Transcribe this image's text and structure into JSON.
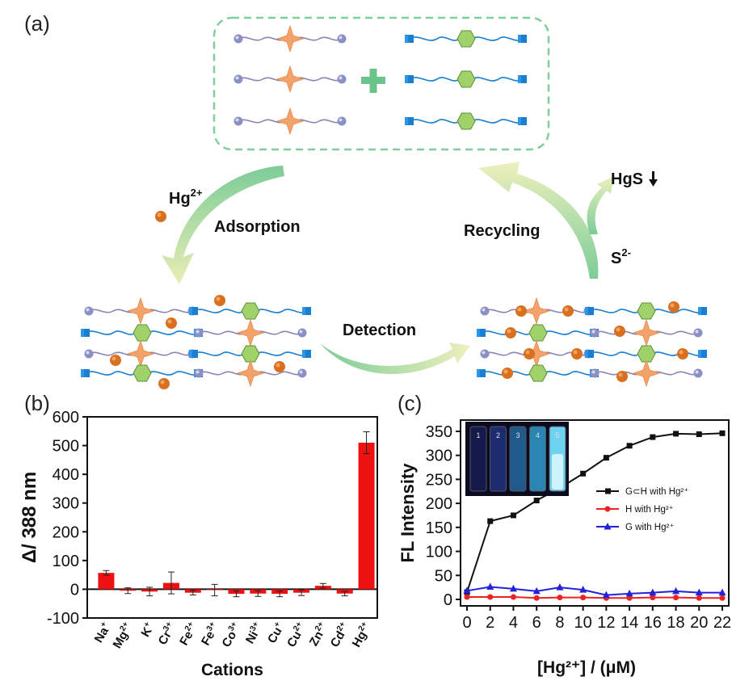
{
  "panels": {
    "a_label": "(a)",
    "b_label": "(b)",
    "c_label": "(c)"
  },
  "scheme": {
    "ion_label": "Hg",
    "ion_charge": "2+",
    "adsorption": "Adsorption",
    "detection": "Detection",
    "recycling": "Recycling",
    "sulfide_label": "S",
    "sulfide_charge": "2-",
    "precipitate_label": "HgS",
    "colors": {
      "dashed_box": "#7fcf9c",
      "plus": "#6cc48a",
      "star": "#f4a26b",
      "hexagon": "#9fd36a",
      "bead": "#8a8fc4",
      "square": "#1a7fd1",
      "hg_ball": "#d9701f",
      "arrow": "#a9d9a9"
    }
  },
  "chart_data": [
    {
      "panel": "b",
      "type": "bar",
      "xlabel": "Cations",
      "ylabel": "Δ/ 388 nm",
      "ylim": [
        -100,
        600
      ],
      "yticks": [
        "600",
        "500",
        "400",
        "300",
        "200",
        "100",
        "0",
        "-100"
      ],
      "categories": [
        {
          "base": "Na",
          "sup": "+"
        },
        {
          "base": "Mg",
          "sup": "2+"
        },
        {
          "base": "K",
          "sup": "+"
        },
        {
          "base": "Cr",
          "sup": "3+"
        },
        {
          "base": "Fe",
          "sup": "2+"
        },
        {
          "base": "Fe",
          "sup": "3+"
        },
        {
          "base": "Co",
          "sup": "3+"
        },
        {
          "base": "Ni",
          "sup": "3+"
        },
        {
          "base": "Cu",
          "sup": "+"
        },
        {
          "base": "Cu",
          "sup": "2+"
        },
        {
          "base": "Zn",
          "sup": "2+"
        },
        {
          "base": "Cd",
          "sup": "2+"
        },
        {
          "base": "Hg",
          "sup": "2+"
        }
      ],
      "values": [
        57,
        -5,
        -8,
        22,
        -12,
        -3,
        -16,
        -15,
        -16,
        -12,
        12,
        -15,
        510
      ],
      "errors": [
        8,
        10,
        15,
        38,
        8,
        20,
        10,
        10,
        10,
        10,
        8,
        8,
        38
      ],
      "bar_color": "#ee1111"
    },
    {
      "panel": "c",
      "type": "line",
      "xlabel": "[Hg²⁺] / (μM)",
      "ylabel": "FL Intensity",
      "xlim": [
        0,
        22
      ],
      "ylim": [
        0,
        360
      ],
      "xticks": [
        "0",
        "2",
        "4",
        "6",
        "8",
        "10",
        "12",
        "14",
        "16",
        "18",
        "20",
        "22"
      ],
      "yticks": [
        "350",
        "300",
        "250",
        "200",
        "150",
        "100",
        "50",
        "0"
      ],
      "x": [
        0,
        2,
        4,
        6,
        8,
        10,
        12,
        14,
        16,
        18,
        20,
        22
      ],
      "series": [
        {
          "name": "G⊂H with Hg²⁺",
          "color": "#111111",
          "marker": "square",
          "values": [
            15,
            163,
            175,
            206,
            232,
            262,
            295,
            320,
            338,
            345,
            344,
            346
          ]
        },
        {
          "name": "H with Hg²⁺",
          "color": "#ee2222",
          "marker": "circle",
          "values": [
            5,
            5,
            5,
            3,
            4,
            4,
            3,
            3,
            4,
            4,
            3,
            3
          ]
        },
        {
          "name": "G with Hg²⁺",
          "color": "#2222dd",
          "marker": "triangle",
          "values": [
            18,
            26,
            22,
            17,
            25,
            20,
            9,
            12,
            14,
            17,
            14,
            14
          ]
        }
      ],
      "inset_vials": [
        "1",
        "2",
        "3",
        "4",
        "5"
      ]
    }
  ]
}
